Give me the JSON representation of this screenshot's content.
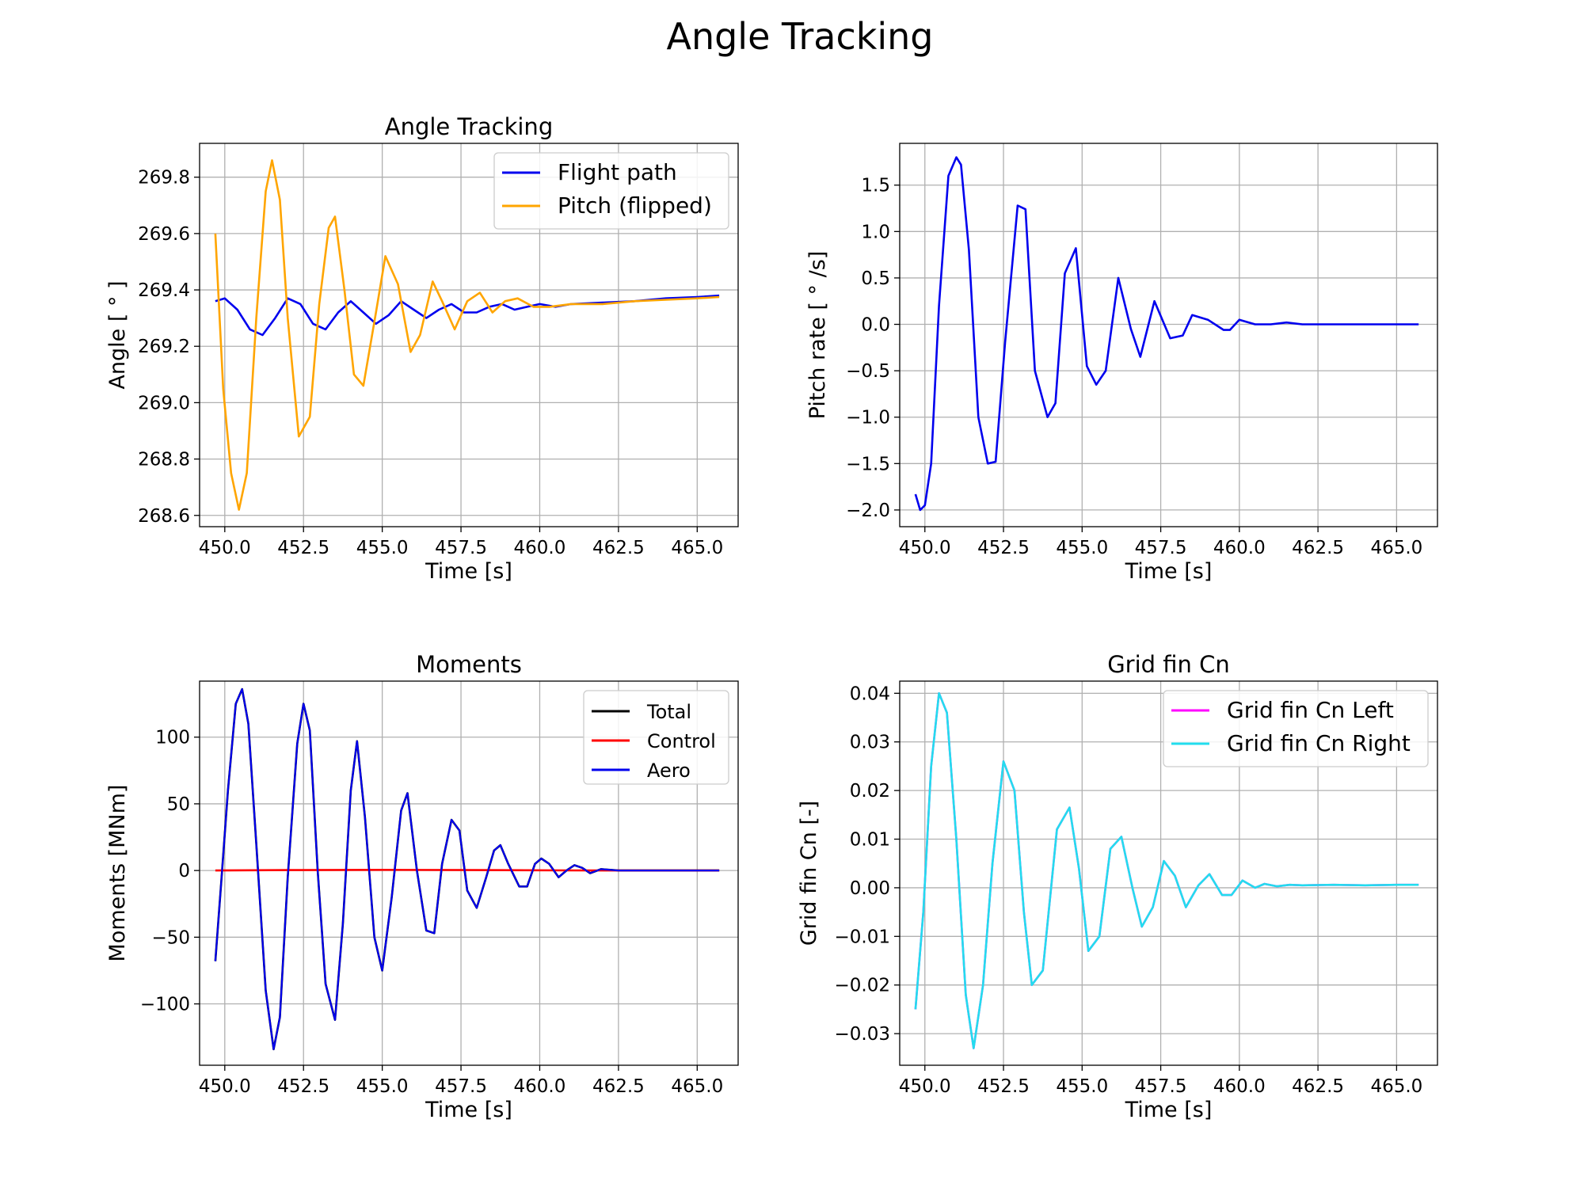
{
  "figure": {
    "title": "Angle Tracking"
  },
  "colors": {
    "blue": "#0000ee",
    "orange": "#ffa500",
    "black": "#000000",
    "red": "#ff0000",
    "magenta": "#ff00ff",
    "cyan": "#22ddee"
  },
  "chart_data": [
    {
      "type": "line",
      "title": "Angle Tracking",
      "xlabel": "Time [s]",
      "ylabel": "Angle [$^\\circ$]",
      "ylabel_display": "Angle [ ° ]",
      "xlim": [
        449.2,
        466.3
      ],
      "ylim": [
        268.56,
        269.92
      ],
      "xticks": [
        450.0,
        452.5,
        455.0,
        457.5,
        460.0,
        462.5,
        465.0
      ],
      "xtick_labels": [
        "450.0",
        "452.5",
        "455.0",
        "457.5",
        "460.0",
        "462.5",
        "465.0"
      ],
      "yticks": [
        268.6,
        268.8,
        269.0,
        269.2,
        269.4,
        269.6,
        269.8
      ],
      "ytick_labels": [
        "268.6",
        "268.8",
        "269.0",
        "269.2",
        "269.4",
        "269.6",
        "269.8"
      ],
      "grid": true,
      "legend": "top-right",
      "series": [
        {
          "name": "Flight path",
          "color": "#0000ee",
          "x": [
            449.7,
            450.0,
            450.4,
            450.8,
            451.2,
            451.6,
            452.0,
            452.4,
            452.8,
            453.2,
            453.6,
            454.0,
            454.4,
            454.8,
            455.2,
            455.6,
            456.0,
            456.4,
            456.8,
            457.2,
            457.6,
            458.0,
            458.4,
            458.8,
            459.2,
            459.6,
            460.0,
            460.5,
            461.0,
            462.0,
            463.0,
            464.0,
            465.0,
            465.7
          ],
          "y": [
            269.36,
            269.37,
            269.33,
            269.26,
            269.24,
            269.3,
            269.37,
            269.35,
            269.28,
            269.26,
            269.32,
            269.36,
            269.32,
            269.28,
            269.31,
            269.36,
            269.33,
            269.3,
            269.33,
            269.35,
            269.32,
            269.32,
            269.34,
            269.35,
            269.33,
            269.34,
            269.35,
            269.34,
            269.35,
            269.355,
            269.36,
            269.37,
            269.375,
            269.38
          ]
        },
        {
          "name": "Pitch (flipped)",
          "color": "#ffa500",
          "x": [
            449.7,
            449.95,
            450.2,
            450.45,
            450.7,
            451.0,
            451.3,
            451.5,
            451.75,
            452.0,
            452.35,
            452.7,
            453.0,
            453.3,
            453.5,
            453.8,
            454.1,
            454.4,
            454.8,
            455.1,
            455.5,
            455.9,
            456.2,
            456.6,
            456.9,
            457.3,
            457.7,
            458.1,
            458.5,
            458.9,
            459.3,
            459.8,
            460.3,
            461.0,
            462.0,
            463.0,
            464.0,
            465.0,
            465.7
          ],
          "y": [
            269.6,
            269.05,
            268.75,
            268.62,
            268.75,
            269.3,
            269.75,
            269.86,
            269.72,
            269.3,
            268.88,
            268.95,
            269.35,
            269.62,
            269.66,
            269.4,
            269.1,
            269.06,
            269.32,
            269.52,
            269.42,
            269.18,
            269.24,
            269.43,
            269.36,
            269.26,
            269.36,
            269.39,
            269.32,
            269.36,
            269.37,
            269.34,
            269.34,
            269.35,
            269.35,
            269.36,
            269.365,
            269.37,
            269.375
          ]
        }
      ]
    },
    {
      "type": "line",
      "title": "",
      "xlabel": "Time [s]",
      "ylabel": "Pitch rate [$^\\circ$/s]",
      "ylabel_display": "Pitch rate [ ° /s]",
      "xlim": [
        449.2,
        466.3
      ],
      "ylim": [
        -2.18,
        1.95
      ],
      "xticks": [
        450.0,
        452.5,
        455.0,
        457.5,
        460.0,
        462.5,
        465.0
      ],
      "xtick_labels": [
        "450.0",
        "452.5",
        "455.0",
        "457.5",
        "460.0",
        "462.5",
        "465.0"
      ],
      "yticks": [
        -2.0,
        -1.5,
        -1.0,
        -0.5,
        0.0,
        0.5,
        1.0,
        1.5
      ],
      "ytick_labels": [
        "−2.0",
        "−1.5",
        "−1.0",
        "−0.5",
        "0.0",
        "0.5",
        "1.0",
        "1.5"
      ],
      "grid": true,
      "series": [
        {
          "name": "",
          "color": "#0000ee",
          "x": [
            449.7,
            449.85,
            450.0,
            450.2,
            450.45,
            450.75,
            451.0,
            451.15,
            451.4,
            451.7,
            452.0,
            452.25,
            452.55,
            452.95,
            453.2,
            453.5,
            453.9,
            454.15,
            454.45,
            454.8,
            455.15,
            455.45,
            455.75,
            456.15,
            456.55,
            456.85,
            457.3,
            457.8,
            458.2,
            458.5,
            459.0,
            459.5,
            459.7,
            460.0,
            460.5,
            461.0,
            461.5,
            462.0,
            463.0,
            464.0,
            465.0,
            465.7
          ],
          "y": [
            -1.83,
            -2.0,
            -1.95,
            -1.5,
            0.2,
            1.6,
            1.8,
            1.72,
            0.8,
            -1.0,
            -1.5,
            -1.48,
            -0.2,
            1.28,
            1.24,
            -0.5,
            -1.0,
            -0.85,
            0.55,
            0.82,
            -0.45,
            -0.65,
            -0.5,
            0.5,
            -0.05,
            -0.35,
            0.25,
            -0.15,
            -0.12,
            0.1,
            0.05,
            -0.06,
            -0.06,
            0.05,
            0.0,
            0.0,
            0.02,
            0.0,
            0.0,
            0.0,
            0.0,
            0.0
          ]
        }
      ]
    },
    {
      "type": "line",
      "title": "Moments",
      "xlabel": "Time [s]",
      "ylabel": "Moments [MNm]",
      "xlim": [
        449.2,
        466.3
      ],
      "ylim": [
        -146,
        142
      ],
      "xticks": [
        450.0,
        452.5,
        455.0,
        457.5,
        460.0,
        462.5,
        465.0
      ],
      "xtick_labels": [
        "450.0",
        "452.5",
        "455.0",
        "457.5",
        "460.0",
        "462.5",
        "465.0"
      ],
      "yticks": [
        -100,
        -50,
        0,
        50,
        100
      ],
      "ytick_labels": [
        "−100",
        "−50",
        "0",
        "50",
        "100"
      ],
      "grid": true,
      "legend": "top-right",
      "series": [
        {
          "name": "Total",
          "color": "#000000",
          "x": [
            449.7,
            449.9,
            450.1,
            450.35,
            450.55,
            450.75,
            451.0,
            451.3,
            451.55,
            451.75,
            452.0,
            452.3,
            452.5,
            452.7,
            452.95,
            453.2,
            453.5,
            453.75,
            454.0,
            454.2,
            454.45,
            454.75,
            455.0,
            455.3,
            455.6,
            455.8,
            456.1,
            456.4,
            456.65,
            456.9,
            457.2,
            457.45,
            457.7,
            458.0,
            458.3,
            458.55,
            458.75,
            459.0,
            459.35,
            459.6,
            459.85,
            460.05,
            460.3,
            460.6,
            460.85,
            461.1,
            461.35,
            461.6,
            461.95,
            462.5,
            463.0,
            464.0,
            465.0,
            465.7
          ],
          "y": [
            -68,
            -5,
            60,
            125,
            136,
            110,
            20,
            -90,
            -134,
            -110,
            -5,
            95,
            125,
            105,
            0,
            -85,
            -112,
            -40,
            60,
            97,
            40,
            -50,
            -75,
            -20,
            45,
            58,
            0,
            -45,
            -47,
            5,
            38,
            30,
            -15,
            -28,
            -5,
            15,
            19,
            5,
            -12,
            -12,
            5,
            9,
            5,
            -5,
            0,
            4,
            2,
            -2,
            1,
            0,
            0,
            0,
            0,
            0
          ]
        },
        {
          "name": "Control",
          "color": "#ff0000",
          "x": [
            449.7,
            452.0,
            455.0,
            458.0,
            461.0,
            463.0,
            465.7
          ],
          "y": [
            0.0,
            0.3,
            0.5,
            0.3,
            0.1,
            0.0,
            0.0
          ]
        },
        {
          "name": "Aero",
          "color": "#0000ee",
          "x": [
            449.7,
            449.9,
            450.1,
            450.35,
            450.55,
            450.75,
            451.0,
            451.3,
            451.55,
            451.75,
            452.0,
            452.3,
            452.5,
            452.7,
            452.95,
            453.2,
            453.5,
            453.75,
            454.0,
            454.2,
            454.45,
            454.75,
            455.0,
            455.3,
            455.6,
            455.8,
            456.1,
            456.4,
            456.65,
            456.9,
            457.2,
            457.45,
            457.7,
            458.0,
            458.3,
            458.55,
            458.75,
            459.0,
            459.35,
            459.6,
            459.85,
            460.05,
            460.3,
            460.6,
            460.85,
            461.1,
            461.35,
            461.6,
            461.95,
            462.5,
            463.0,
            464.0,
            465.0,
            465.7
          ],
          "y": [
            -68,
            -5,
            60,
            125,
            136,
            110,
            20,
            -90,
            -134,
            -110,
            -5,
            95,
            125,
            105,
            0,
            -85,
            -112,
            -40,
            60,
            97,
            40,
            -50,
            -75,
            -20,
            45,
            58,
            0,
            -45,
            -47,
            5,
            38,
            30,
            -15,
            -28,
            -5,
            15,
            19,
            5,
            -12,
            -12,
            5,
            9,
            5,
            -5,
            0,
            4,
            2,
            -2,
            1,
            0,
            0,
            0,
            0,
            0
          ]
        }
      ]
    },
    {
      "type": "line",
      "title": "Grid fin Cn",
      "xlabel": "Time [s]",
      "ylabel": "Grid fin Cn [-]",
      "xlim": [
        449.2,
        466.3
      ],
      "ylim": [
        -0.0365,
        0.0425
      ],
      "xticks": [
        450.0,
        452.5,
        455.0,
        457.5,
        460.0,
        462.5,
        465.0
      ],
      "xtick_labels": [
        "450.0",
        "452.5",
        "455.0",
        "457.5",
        "460.0",
        "462.5",
        "465.0"
      ],
      "yticks": [
        -0.03,
        -0.02,
        -0.01,
        0.0,
        0.01,
        0.02,
        0.03,
        0.04
      ],
      "ytick_labels": [
        "−0.03",
        "−0.02",
        "−0.01",
        "0.00",
        "0.01",
        "0.02",
        "0.03",
        "0.04"
      ],
      "grid": true,
      "legend": "top-right",
      "series": [
        {
          "name": "Grid fin Cn Left",
          "color": "#ff00ff",
          "x": [
            449.7,
            449.95,
            450.2,
            450.45,
            450.7,
            451.0,
            451.3,
            451.55,
            451.85,
            452.15,
            452.5,
            452.85,
            453.15,
            453.4,
            453.75,
            454.2,
            454.6,
            454.9,
            455.2,
            455.55,
            455.9,
            456.25,
            456.6,
            456.9,
            457.25,
            457.6,
            457.95,
            458.3,
            458.7,
            459.05,
            459.45,
            459.75,
            460.1,
            460.5,
            460.8,
            461.2,
            461.6,
            462.0,
            463.0,
            464.0,
            465.0,
            465.7
          ],
          "y": [
            -0.025,
            -0.005,
            0.025,
            0.04,
            0.036,
            0.01,
            -0.022,
            -0.033,
            -0.02,
            0.005,
            0.026,
            0.02,
            -0.005,
            -0.02,
            -0.017,
            0.012,
            0.0165,
            0.004,
            -0.013,
            -0.01,
            0.008,
            0.0105,
            0.0,
            -0.008,
            -0.004,
            0.0055,
            0.0025,
            -0.004,
            0.0005,
            0.0028,
            -0.0015,
            -0.0015,
            0.0015,
            0.0,
            0.0008,
            0.0003,
            0.0006,
            0.0005,
            0.0006,
            0.0005,
            0.0006,
            0.0006
          ]
        },
        {
          "name": "Grid fin Cn Right",
          "color": "#22ddee",
          "x": [
            449.7,
            449.95,
            450.2,
            450.45,
            450.7,
            451.0,
            451.3,
            451.55,
            451.85,
            452.15,
            452.5,
            452.85,
            453.15,
            453.4,
            453.75,
            454.2,
            454.6,
            454.9,
            455.2,
            455.55,
            455.9,
            456.25,
            456.6,
            456.9,
            457.25,
            457.6,
            457.95,
            458.3,
            458.7,
            459.05,
            459.45,
            459.75,
            460.1,
            460.5,
            460.8,
            461.2,
            461.6,
            462.0,
            463.0,
            464.0,
            465.0,
            465.7
          ],
          "y": [
            -0.025,
            -0.005,
            0.025,
            0.04,
            0.036,
            0.01,
            -0.022,
            -0.033,
            -0.02,
            0.005,
            0.026,
            0.02,
            -0.005,
            -0.02,
            -0.017,
            0.012,
            0.0165,
            0.004,
            -0.013,
            -0.01,
            0.008,
            0.0105,
            0.0,
            -0.008,
            -0.004,
            0.0055,
            0.0025,
            -0.004,
            0.0005,
            0.0028,
            -0.0015,
            -0.0015,
            0.0015,
            0.0,
            0.0008,
            0.0003,
            0.0006,
            0.0005,
            0.0006,
            0.0005,
            0.0006,
            0.0006
          ]
        }
      ]
    }
  ]
}
